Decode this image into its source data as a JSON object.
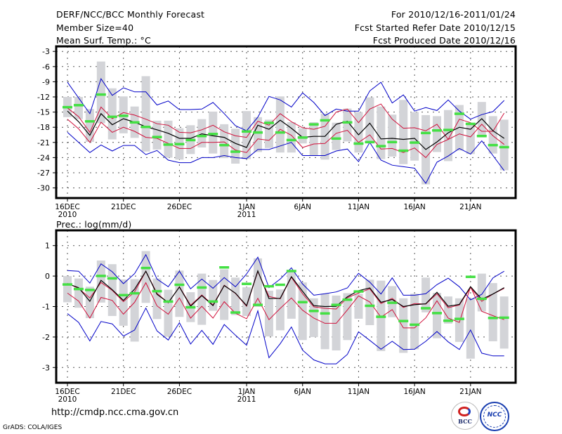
{
  "header": {
    "title": "DERF/NCC/BCC Monthly Forecast",
    "member_size": "Member Size=40",
    "variable_temp": "Mean Surf. Temp.: °C",
    "period": "For 2010/12/16-2011/01/24",
    "fcst_started": "Fcst Started Refer Date 2010/12/15",
    "fcst_produced": "Fcst Produced Date 2010/12/16"
  },
  "footer": {
    "url": "http://cmdp.ncc.cma.gov.cn",
    "grads": "GrADS: COLA/IGES",
    "logo_left": "BCC",
    "logo_right": "NCC"
  },
  "colors": {
    "mean": "#000000",
    "std": "#d0103a",
    "extreme": "#0000c8",
    "range_bar": "#d3d4d8",
    "marker": "#44e044",
    "grid": "#555555"
  },
  "chart_data": [
    {
      "type": "line",
      "title": "Mean Surf. Temp.: °C",
      "xlabel": "",
      "ylabel": "",
      "ylim": [
        -32,
        -2
      ],
      "yticks": [
        -3,
        -6,
        -9,
        -12,
        -15,
        -18,
        -21,
        -24,
        -27,
        -30
      ],
      "ytick_labels": [
        "-3",
        "-6",
        "-9",
        "-12",
        "-15",
        "-18",
        "-21",
        "-24",
        "-27",
        "-30"
      ],
      "xtick_days": [
        0,
        5,
        10,
        16,
        21,
        26,
        31,
        36
      ],
      "xtick_labels": [
        "16DEC",
        "21DEC",
        "26DEC",
        "1JAN",
        "6JAN",
        "11JAN",
        "16JAN",
        "21JAN"
      ],
      "xtick_sublabels": [
        "2010",
        "",
        "",
        "2011",
        "",
        "",
        "",
        ""
      ],
      "grid": true,
      "legend": "none",
      "n_days": 40,
      "series": [
        {
          "name": "max",
          "color_key": "extreme",
          "values": [
            -9.1,
            -12.2,
            -15.3,
            -8.4,
            -11.7,
            -10.2,
            -11.0,
            -11.0,
            -13.6,
            -12.8,
            -14.5,
            -14.5,
            -14.4,
            -13.1,
            -15.3,
            -17.7,
            -18.7,
            -16.0,
            -11.9,
            -12.6,
            -14.0,
            -11.2,
            -13.1,
            -15.7,
            -14.4,
            -14.8,
            -14.8,
            -10.8,
            -9.1,
            -13.2,
            -11.6,
            -14.8,
            -14.1,
            -14.7,
            -12.6,
            -14.8,
            -16.4,
            -15.5,
            -14.9,
            -12.7
          ]
        },
        {
          "name": "mean_plus_std",
          "color_key": "std",
          "values": [
            -14.2,
            -15.9,
            -19.0,
            -14.0,
            -16.3,
            -15.1,
            -15.6,
            -16.4,
            -17.3,
            -17.6,
            -19.0,
            -19.1,
            -18.5,
            -17.6,
            -18.9,
            -19.7,
            -20.0,
            -16.8,
            -17.6,
            -15.3,
            -16.9,
            -18.1,
            -18.4,
            -17.8,
            -15.0,
            -14.4,
            -17.1,
            -14.4,
            -13.4,
            -16.4,
            -18.2,
            -18.1,
            -18.7,
            -17.4,
            -20.4,
            -16.4,
            -17.1,
            -18.8,
            -18.8,
            -15.2
          ]
        },
        {
          "name": "mean",
          "color_key": "mean",
          "values": [
            -14.8,
            -16.9,
            -19.6,
            -15.3,
            -17.5,
            -16.3,
            -17.0,
            -17.9,
            -18.5,
            -19.2,
            -20.2,
            -20.2,
            -19.3,
            -19.7,
            -20.0,
            -21.2,
            -22.0,
            -17.6,
            -18.4,
            -16.6,
            -18.2,
            -20.0,
            -19.8,
            -19.8,
            -17.4,
            -16.8,
            -19.5,
            -17.2,
            -20.3,
            -20.2,
            -20.4,
            -20.2,
            -22.4,
            -20.9,
            -19.1,
            -18.0,
            -18.4,
            -16.3,
            -18.7,
            -20.2
          ]
        },
        {
          "name": "mean_minus_std",
          "color_key": "std",
          "values": [
            -16.4,
            -18.3,
            -21.0,
            -17.0,
            -19.0,
            -18.0,
            -18.8,
            -20.0,
            -20.2,
            -21.2,
            -22.2,
            -22.2,
            -21.0,
            -21.0,
            -20.9,
            -22.5,
            -23.0,
            -20.3,
            -20.6,
            -18.4,
            -19.6,
            -22.0,
            -21.3,
            -21.2,
            -19.2,
            -18.6,
            -21.0,
            -19.5,
            -22.3,
            -22.2,
            -23.0,
            -22.1,
            -24.0,
            -21.4,
            -20.4,
            -19.3,
            -19.9,
            -17.4,
            -19.7,
            -21.4
          ]
        },
        {
          "name": "min",
          "color_key": "extreme",
          "values": [
            -19.0,
            -21.0,
            -23.0,
            -21.5,
            -22.7,
            -21.6,
            -21.6,
            -23.4,
            -22.6,
            -24.5,
            -25.0,
            -25.0,
            -24.0,
            -24.0,
            -23.6,
            -24.0,
            -24.2,
            -22.4,
            -22.4,
            -21.7,
            -21.0,
            -23.6,
            -23.6,
            -23.6,
            -22.7,
            -22.3,
            -24.8,
            -21.0,
            -24.5,
            -25.5,
            -25.8,
            -26.1,
            -29.1,
            -24.9,
            -23.7,
            -22.2,
            -23.3,
            -20.7,
            -23.6,
            -26.6
          ]
        },
        {
          "name": "range_top",
          "color_key": "range_bar",
          "values": [
            -12.0,
            -12.0,
            -14.4,
            -5.0,
            -10.3,
            -11.9,
            -13.9,
            -7.9,
            -16.7,
            -16.7,
            -18.2,
            -17.6,
            -16.4,
            -14.9,
            -17.4,
            -18.3,
            -14.8,
            -16.0,
            -16.5,
            -11.9,
            -17.0,
            -18.2,
            -17.0,
            -15.3,
            -17.1,
            -14.3,
            -15.0,
            -12.1,
            -13.9,
            -15.5,
            -12.6,
            -15.0,
            -15.6,
            -15.8,
            -14.6,
            -13.6,
            -17.3,
            -13.0,
            -15.8,
            -16.5
          ]
        },
        {
          "name": "range_bottom",
          "color_key": "range_bar",
          "values": [
            -16.0,
            -16.4,
            -20.9,
            -17.2,
            -20.4,
            -19.2,
            -20.1,
            -22.8,
            -22.4,
            -24.0,
            -24.4,
            -23.3,
            -22.0,
            -23.2,
            -24.1,
            -25.2,
            -24.3,
            -22.9,
            -22.1,
            -23.0,
            -23.0,
            -21.2,
            -23.6,
            -24.4,
            -22.5,
            -20.8,
            -23.0,
            -21.2,
            -24.3,
            -23.8,
            -25.3,
            -24.6,
            -29.3,
            -22.9,
            -24.7,
            -22.6,
            -23.3,
            -20.0,
            -23.2,
            -26.5
          ]
        },
        {
          "name": "member_marker",
          "color_key": "marker",
          "values": [
            -14.0,
            -13.6,
            -16.8,
            -11.5,
            -15.9,
            -15.7,
            -17.0,
            -17.9,
            -19.9,
            -21.4,
            -21.3,
            -20.5,
            -19.7,
            -19.3,
            -21.5,
            -22.8,
            -18.8,
            -19.0,
            -17.1,
            -19.0,
            -20.5,
            -20.0,
            -17.4,
            -16.6,
            -20.2,
            -17.0,
            -21.2,
            -20.9,
            -21.7,
            -20.9,
            -22.6,
            -21.0,
            -19.1,
            -18.6,
            -18.5,
            -15.3,
            -17.3,
            -19.7,
            -21.5,
            -21.9
          ]
        }
      ]
    },
    {
      "type": "line",
      "title": "Prec.: log(mm/d)",
      "xlabel": "",
      "ylabel": "",
      "ylim": [
        -3.5,
        1.5
      ],
      "yticks": [
        1,
        0,
        -1,
        -2,
        -3
      ],
      "ytick_labels": [
        "1",
        "0",
        "-1",
        "-2",
        "-3"
      ],
      "xtick_days": [
        0,
        5,
        10,
        16,
        21,
        26,
        31,
        36
      ],
      "xtick_labels": [
        "16DEC",
        "21DEC",
        "26DEC",
        "1JAN",
        "6JAN",
        "11JAN",
        "16JAN",
        "21JAN"
      ],
      "xtick_sublabels": [
        "2010",
        "",
        "",
        "2011",
        "",
        "",
        "",
        ""
      ],
      "grid": true,
      "legend": "none",
      "n_days": 40,
      "series": [
        {
          "name": "max",
          "color_key": "extreme",
          "values": [
            0.18,
            0.16,
            -0.23,
            0.4,
            0.14,
            -0.25,
            0.08,
            0.7,
            -0.1,
            -0.35,
            0.16,
            -0.42,
            -0.1,
            -0.4,
            -0.05,
            -0.35,
            0.07,
            0.62,
            -0.38,
            -0.1,
            0.27,
            -0.26,
            -0.63,
            -0.58,
            -0.52,
            -0.39,
            0.09,
            -0.2,
            -0.59,
            -0.06,
            -0.63,
            -0.63,
            -0.58,
            -0.28,
            -0.07,
            -0.35,
            -0.78,
            -0.6,
            -0.06,
            0.16
          ]
        },
        {
          "name": "mean_plus_std",
          "color_key": "std",
          "values": [
            -0.24,
            -0.4,
            -0.72,
            -0.21,
            -0.47,
            -0.84,
            -0.52,
            0.16,
            -0.57,
            -0.88,
            -0.35,
            -0.96,
            -0.62,
            -0.95,
            -0.3,
            -0.57,
            -0.99,
            0.15,
            -0.67,
            -0.75,
            -0.04,
            -0.58,
            -1.01,
            -1.06,
            -1.08,
            -0.71,
            -0.56,
            -0.42,
            -0.9,
            -0.73,
            -1.03,
            -0.9,
            -0.92,
            -0.58,
            -1.04,
            -0.95,
            -0.38,
            -0.83,
            -0.59,
            -0.4
          ]
        },
        {
          "name": "mean",
          "color_key": "mean",
          "values": [
            -0.25,
            -0.38,
            -0.83,
            -0.14,
            -0.45,
            -0.8,
            -0.43,
            0.16,
            -0.6,
            -0.87,
            -0.36,
            -0.99,
            -0.64,
            -0.97,
            -0.31,
            -0.56,
            -0.97,
            0.17,
            -0.74,
            -0.73,
            -0.02,
            -0.5,
            -0.97,
            -1.0,
            -0.99,
            -0.68,
            -0.48,
            -0.39,
            -0.86,
            -0.77,
            -1.0,
            -0.94,
            -0.91,
            -0.53,
            -0.99,
            -0.93,
            -0.35,
            -0.76,
            -0.59,
            -0.38
          ]
        },
        {
          "name": "mean_minus_std",
          "color_key": "std",
          "values": [
            -0.56,
            -0.82,
            -1.38,
            -0.7,
            -0.8,
            -1.25,
            -0.86,
            -0.22,
            -0.98,
            -1.25,
            -0.72,
            -1.38,
            -0.99,
            -1.38,
            -0.84,
            -1.22,
            -1.4,
            -0.73,
            -1.43,
            -1.06,
            -0.72,
            -1.12,
            -1.38,
            -1.55,
            -1.55,
            -1.11,
            -0.65,
            -0.85,
            -1.35,
            -1.1,
            -1.7,
            -1.7,
            -1.37,
            -0.81,
            -1.38,
            -1.52,
            -0.35,
            -1.16,
            -1.3,
            -1.43
          ]
        },
        {
          "name": "min",
          "color_key": "extreme",
          "values": [
            -1.23,
            -1.52,
            -2.13,
            -1.49,
            -1.57,
            -1.97,
            -1.77,
            -1.05,
            -1.8,
            -2.1,
            -1.53,
            -2.23,
            -1.78,
            -2.24,
            -1.59,
            -1.94,
            -2.27,
            -1.14,
            -2.68,
            -2.22,
            -1.67,
            -2.43,
            -2.75,
            -2.88,
            -2.88,
            -2.57,
            -1.83,
            -2.11,
            -2.4,
            -2.14,
            -2.41,
            -2.4,
            -2.14,
            -1.82,
            -2.16,
            -2.41,
            -1.77,
            -2.53,
            -2.62,
            -2.62
          ]
        },
        {
          "name": "range_top",
          "color_key": "range_bar",
          "values": [
            0.0,
            -0.08,
            -0.35,
            0.51,
            0.39,
            -0.11,
            -0.1,
            0.82,
            -0.08,
            -0.45,
            0.18,
            -0.53,
            0.08,
            -0.13,
            0.22,
            -0.05,
            -0.37,
            0.58,
            -0.48,
            -0.44,
            0.15,
            -0.21,
            -0.73,
            -0.58,
            -0.64,
            -0.56,
            -0.58,
            -0.12,
            -0.15,
            -0.33,
            -0.73,
            -0.58,
            -0.05,
            -0.55,
            -0.67,
            -0.73,
            -0.74,
            0.08,
            -0.23,
            -0.67
          ]
        },
        {
          "name": "range_bottom",
          "color_key": "range_bar",
          "values": [
            -0.86,
            -1.04,
            -1.38,
            -0.87,
            -1.31,
            -1.63,
            -2.15,
            -0.88,
            -1.41,
            -1.99,
            -1.34,
            -1.51,
            -1.6,
            -1.14,
            -1.44,
            -1.28,
            -1.31,
            -1.01,
            -1.98,
            -1.78,
            -1.4,
            -2.1,
            -2.0,
            -2.4,
            -2.44,
            -2.1,
            -1.4,
            -1.61,
            -2.46,
            -1.35,
            -2.52,
            -2.4,
            -1.19,
            -2.04,
            -1.56,
            -2.16,
            -2.71,
            -1.16,
            -2.14,
            -2.38
          ]
        },
        {
          "name": "member_marker",
          "color_key": "marker",
          "values": [
            -0.27,
            -0.42,
            -0.45,
            0.01,
            -0.07,
            -0.62,
            -0.56,
            0.27,
            -0.49,
            -0.83,
            -0.28,
            -1.02,
            -0.37,
            -0.83,
            0.29,
            -1.19,
            -0.25,
            -0.94,
            -0.33,
            -0.28,
            0.17,
            -0.85,
            -1.14,
            -1.22,
            -0.94,
            -0.77,
            -0.5,
            -0.97,
            -1.33,
            -0.87,
            -1.47,
            -1.59,
            -1.05,
            -1.21,
            -1.46,
            -1.4,
            -0.02,
            -0.74,
            -1.37,
            -1.36
          ]
        }
      ]
    }
  ]
}
